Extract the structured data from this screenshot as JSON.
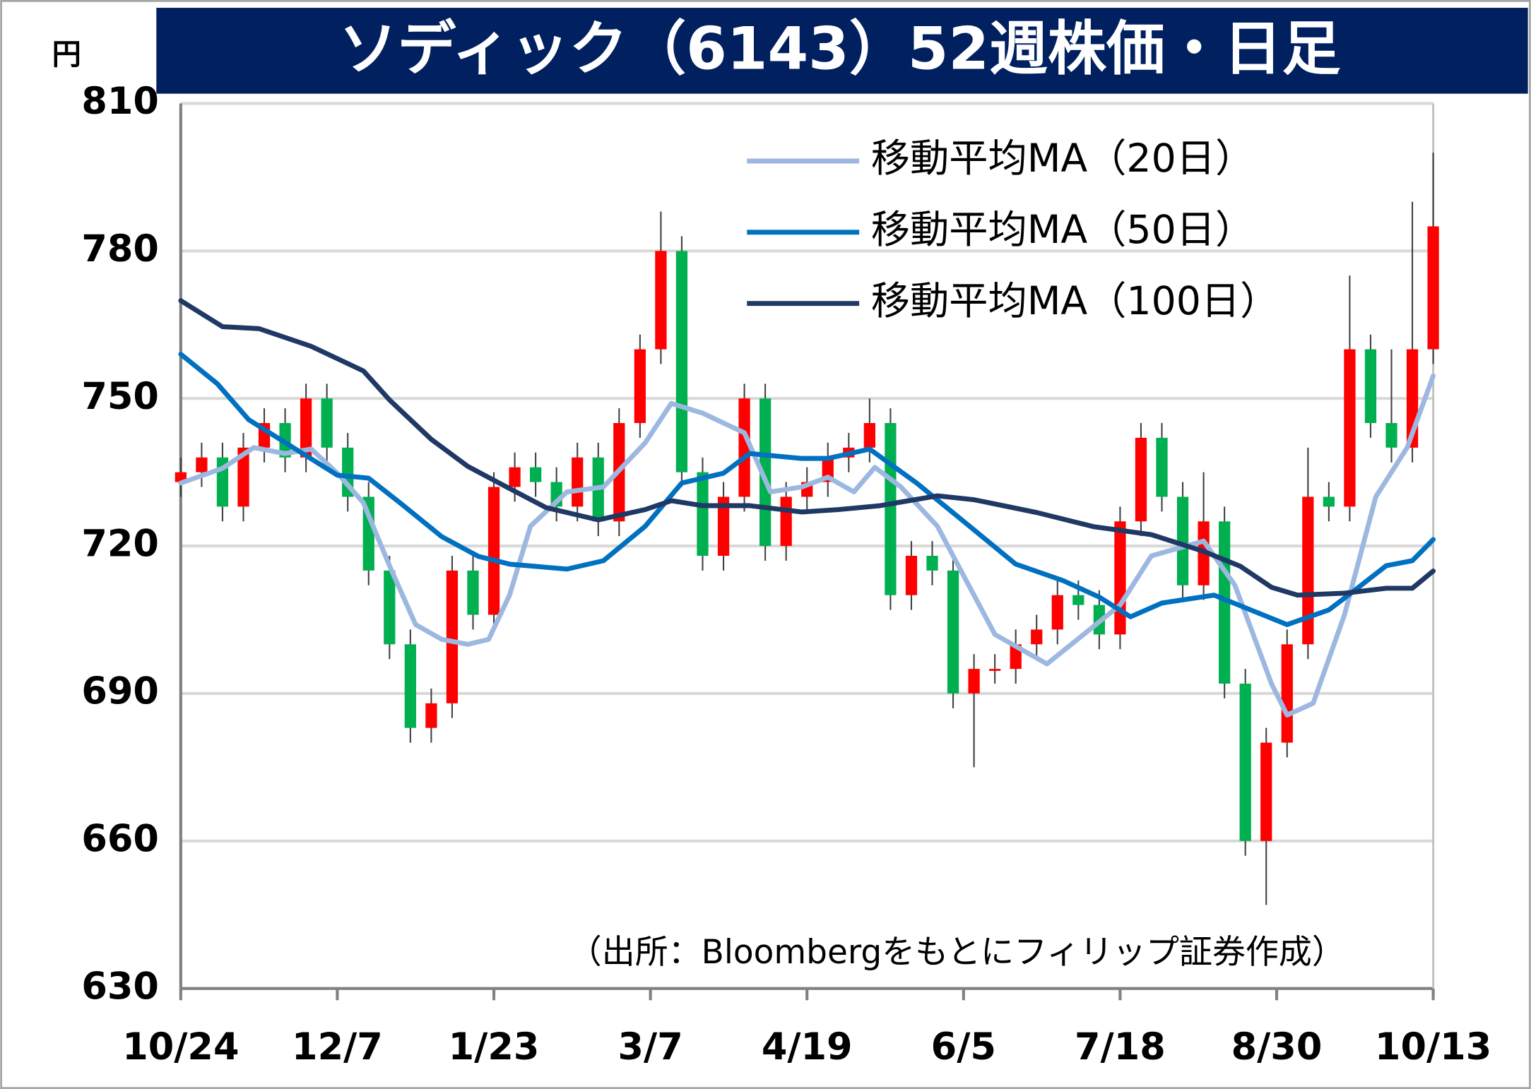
{
  "chart_data": {
    "type": "candlestick",
    "title": "ソディック（6143）52週株価・日足",
    "y_unit": "円",
    "source": "（出所：Bloombergをもとにフィリップ証券作成）",
    "xlim": [
      0,
      240
    ],
    "xticks": [
      {
        "value": 0,
        "label": "10/24"
      },
      {
        "value": 30,
        "label": "12/7"
      },
      {
        "value": 60,
        "label": "1/23"
      },
      {
        "value": 90,
        "label": "3/7"
      },
      {
        "value": 120,
        "label": "4/19"
      },
      {
        "value": 150,
        "label": "6/5"
      },
      {
        "value": 180,
        "label": "7/18"
      },
      {
        "value": 210,
        "label": "8/30"
      },
      {
        "value": 240,
        "label": "10/13"
      }
    ],
    "ylim": [
      630,
      810
    ],
    "yticks": [
      630,
      660,
      690,
      720,
      750,
      780,
      810
    ],
    "grid": true,
    "up_color": "#ff0000",
    "down_color": "#00b050",
    "candles": {
      "x": [
        0,
        4,
        8,
        12,
        16,
        20,
        24,
        28,
        32,
        36,
        40,
        44,
        48,
        52,
        56,
        60,
        64,
        68,
        72,
        76,
        80,
        84,
        88,
        92,
        96,
        100,
        104,
        108,
        112,
        116,
        120,
        124,
        128,
        132,
        136,
        140,
        144,
        148,
        152,
        156,
        160,
        164,
        168,
        172,
        176,
        180,
        184,
        188,
        192,
        196,
        200,
        204,
        208,
        212,
        216,
        220,
        224,
        228,
        232,
        236,
        240
      ],
      "open": [
        733,
        735,
        738,
        728,
        740,
        745,
        738,
        750,
        740,
        730,
        715,
        700,
        683,
        688,
        715,
        706,
        732,
        736,
        733,
        728,
        738,
        725,
        745,
        760,
        780,
        735,
        718,
        730,
        750,
        720,
        730,
        733,
        738,
        740,
        745,
        710,
        718,
        715,
        690,
        695,
        695,
        700,
        703,
        710,
        708,
        702,
        725,
        742,
        730,
        712,
        725,
        692,
        660,
        680,
        700,
        730,
        728,
        760,
        745,
        740,
        760
      ],
      "high": [
        738,
        741,
        741,
        743,
        748,
        748,
        753,
        753,
        743,
        733,
        718,
        703,
        691,
        718,
        718,
        735,
        739,
        739,
        736,
        741,
        741,
        748,
        763,
        788,
        783,
        738,
        733,
        753,
        753,
        733,
        736,
        741,
        743,
        750,
        748,
        721,
        721,
        718,
        698,
        698,
        703,
        706,
        713,
        713,
        711,
        728,
        745,
        745,
        733,
        735,
        728,
        695,
        683,
        703,
        740,
        733,
        775,
        763,
        760,
        790,
        800
      ],
      "low": [
        730,
        732,
        725,
        725,
        737,
        735,
        735,
        737,
        727,
        712,
        697,
        680,
        680,
        685,
        703,
        703,
        729,
        730,
        725,
        725,
        722,
        722,
        742,
        757,
        732,
        715,
        715,
        727,
        717,
        717,
        727,
        730,
        735,
        737,
        707,
        707,
        712,
        687,
        675,
        692,
        692,
        697,
        700,
        705,
        699,
        699,
        722,
        727,
        709,
        709,
        689,
        657,
        647,
        677,
        697,
        725,
        725,
        742,
        737,
        737,
        757
      ],
      "close": [
        735,
        738,
        728,
        740,
        745,
        738,
        750,
        740,
        730,
        715,
        700,
        683,
        688,
        715,
        706,
        732,
        736,
        733,
        728,
        738,
        725,
        745,
        760,
        780,
        735,
        718,
        730,
        750,
        720,
        730,
        733,
        738,
        740,
        745,
        710,
        718,
        715,
        690,
        695,
        695,
        700,
        703,
        710,
        708,
        702,
        725,
        742,
        730,
        712,
        725,
        692,
        660,
        680,
        700,
        730,
        728,
        760,
        745,
        740,
        760,
        785
      ]
    },
    "series": [
      {
        "name": "移動平均MA（20日）",
        "color": "#9db8e0",
        "x": [
          0,
          8,
          14,
          20,
          25,
          30,
          35,
          40,
          45,
          50,
          55,
          59,
          63,
          67,
          74,
          81,
          89,
          94,
          100,
          108,
          113,
          119,
          124,
          129,
          133,
          138,
          145,
          151,
          156,
          166,
          173,
          180,
          186,
          196,
          202,
          209,
          212,
          217,
          223,
          229,
          235,
          240
        ],
        "values": [
          732.8,
          735.8,
          740,
          738.8,
          739.7,
          734.8,
          728.8,
          716,
          704,
          701,
          700,
          701,
          710,
          724,
          731,
          732,
          741,
          749,
          747,
          743,
          731,
          732,
          734,
          731,
          736,
          732,
          724,
          712,
          702,
          696,
          702,
          708,
          718,
          721,
          712,
          692,
          685.6,
          688,
          706,
          730,
          740,
          754.6
        ]
      },
      {
        "name": "移動平均MA（50日）",
        "color": "#0070c0",
        "x": [
          0,
          7,
          13,
          22,
          30,
          36,
          42,
          50,
          57,
          63,
          74,
          81,
          89,
          96,
          104,
          109,
          119,
          124,
          132,
          141,
          149,
          160,
          169,
          176,
          182,
          188,
          198,
          205,
          212,
          220,
          225,
          231,
          236,
          240
        ],
        "values": [
          759,
          753,
          745.7,
          739.7,
          734.4,
          733.8,
          728.8,
          721.9,
          717.9,
          716.3,
          715.3,
          717,
          724,
          732.8,
          734.8,
          738.8,
          737.8,
          737.8,
          739.7,
          732.8,
          725.9,
          716.3,
          713,
          709.6,
          705.6,
          708.4,
          710,
          707,
          704,
          707,
          711,
          716,
          717,
          721.3
        ]
      },
      {
        "name": "移動平均MA（100日）",
        "color": "#1f3864",
        "x": [
          0,
          8,
          15,
          25,
          35,
          40,
          48,
          55,
          61,
          70,
          80,
          89,
          94,
          100,
          109,
          119,
          126,
          134,
          145,
          152,
          164,
          175,
          186,
          196,
          203,
          209,
          214,
          223,
          231,
          236,
          240
        ],
        "values": [
          769.9,
          764.6,
          764.2,
          760.6,
          755.6,
          749.7,
          741.7,
          736.2,
          732.8,
          727.8,
          725.3,
          727.4,
          729.2,
          728.2,
          728.2,
          726.9,
          727.4,
          728.2,
          730.2,
          729.4,
          726.8,
          723.9,
          722.3,
          718.9,
          715.9,
          711.6,
          710,
          710.4,
          711.4,
          711.4,
          714.9
        ]
      }
    ]
  }
}
